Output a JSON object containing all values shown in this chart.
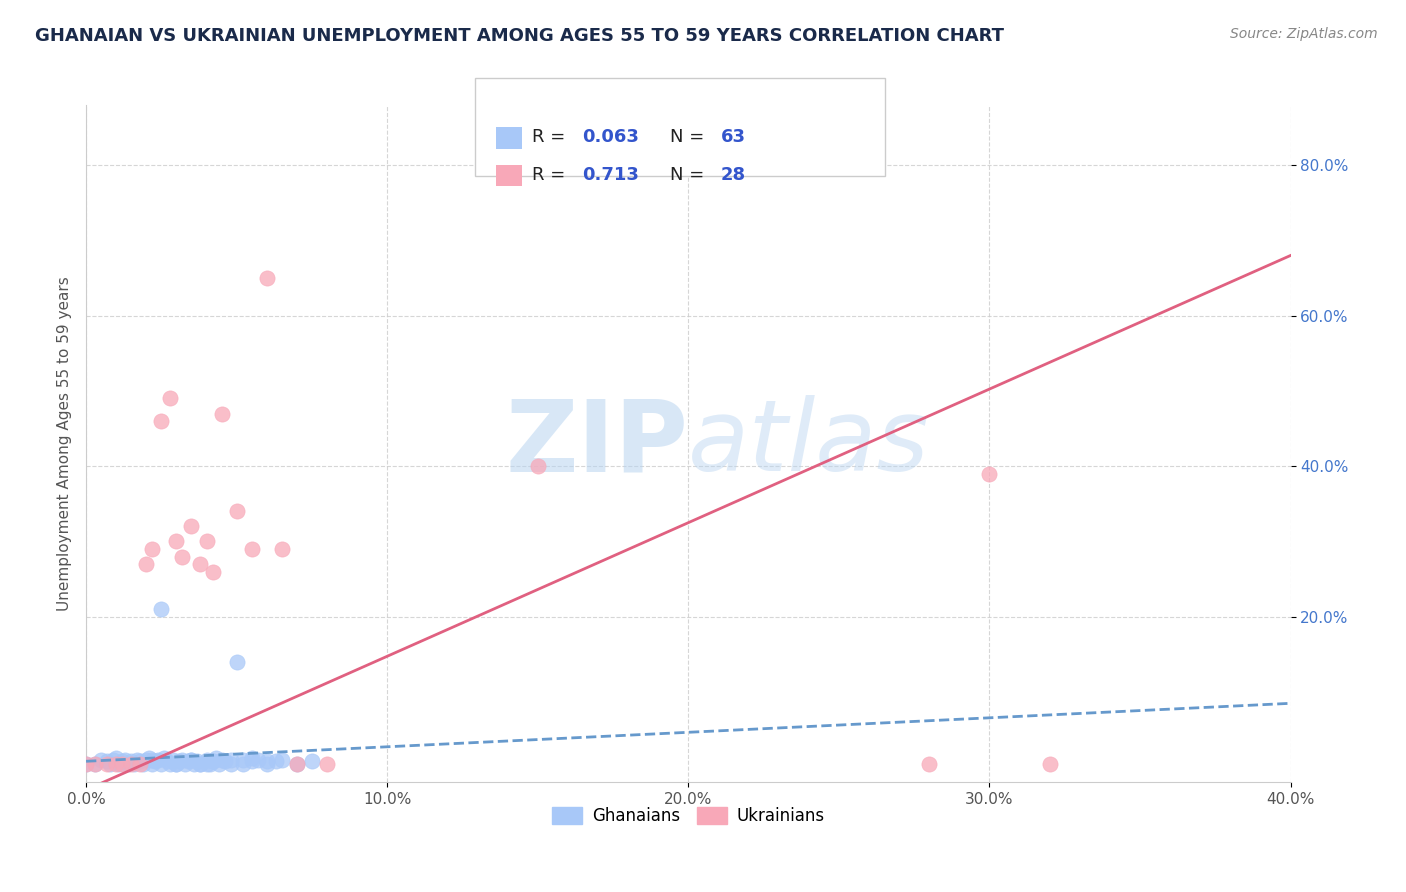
{
  "title": "GHANAIAN VS UKRAINIAN UNEMPLOYMENT AMONG AGES 55 TO 59 YEARS CORRELATION CHART",
  "source_text": "Source: ZipAtlas.com",
  "ylabel": "Unemployment Among Ages 55 to 59 years",
  "xlim": [
    0.0,
    0.4
  ],
  "ylim": [
    -0.02,
    0.88
  ],
  "xtick_labels": [
    "0.0%",
    "10.0%",
    "20.0%",
    "30.0%",
    "40.0%"
  ],
  "xtick_values": [
    0.0,
    0.1,
    0.2,
    0.3,
    0.4
  ],
  "ytick_labels": [
    "20.0%",
    "40.0%",
    "60.0%",
    "80.0%"
  ],
  "ytick_values": [
    0.2,
    0.4,
    0.6,
    0.8
  ],
  "ghanaian_color": "#a8c8f8",
  "ukrainian_color": "#f8a8b8",
  "ghanaian_trendline_color": "#6699cc",
  "ukrainian_trendline_color": "#e06080",
  "ghanaian_R": 0.063,
  "ghanaian_N": 63,
  "ukrainian_R": 0.713,
  "ukrainian_N": 28,
  "watermark": "ZIPatlas",
  "background_color": "#ffffff",
  "grid_color": "#cccccc",
  "ytick_color": "#4477cc",
  "legend_R_N_color": "#3355cc",
  "ghanaian_scatter_x": [
    0.0,
    0.003,
    0.005,
    0.007,
    0.008,
    0.009,
    0.01,
    0.011,
    0.012,
    0.013,
    0.014,
    0.015,
    0.016,
    0.017,
    0.018,
    0.019,
    0.02,
    0.021,
    0.022,
    0.023,
    0.024,
    0.025,
    0.026,
    0.027,
    0.028,
    0.029,
    0.03,
    0.031,
    0.032,
    0.033,
    0.034,
    0.035,
    0.036,
    0.037,
    0.038,
    0.04,
    0.041,
    0.042,
    0.043,
    0.044,
    0.045,
    0.046,
    0.048,
    0.05,
    0.052,
    0.055,
    0.057,
    0.06,
    0.063,
    0.065,
    0.07,
    0.075,
    0.052,
    0.048,
    0.055,
    0.06,
    0.04,
    0.035,
    0.038,
    0.042,
    0.03,
    0.025,
    0.022
  ],
  "ghanaian_scatter_y": [
    0.005,
    0.005,
    0.01,
    0.008,
    0.005,
    0.01,
    0.012,
    0.005,
    0.008,
    0.01,
    0.005,
    0.008,
    0.005,
    0.01,
    0.008,
    0.005,
    0.01,
    0.012,
    0.005,
    0.008,
    0.01,
    0.005,
    0.012,
    0.008,
    0.005,
    0.01,
    0.005,
    0.008,
    0.01,
    0.005,
    0.008,
    0.01,
    0.005,
    0.008,
    0.005,
    0.01,
    0.005,
    0.008,
    0.012,
    0.005,
    0.01,
    0.008,
    0.005,
    0.14,
    0.01,
    0.008,
    0.01,
    0.005,
    0.008,
    0.01,
    0.005,
    0.008,
    0.005,
    0.01,
    0.012,
    0.008,
    0.005,
    0.01,
    0.005,
    0.008,
    0.005,
    0.21,
    0.01
  ],
  "ukrainian_scatter_x": [
    0.0,
    0.003,
    0.007,
    0.01,
    0.012,
    0.015,
    0.018,
    0.02,
    0.022,
    0.025,
    0.028,
    0.03,
    0.032,
    0.035,
    0.038,
    0.04,
    0.042,
    0.045,
    0.05,
    0.055,
    0.06,
    0.065,
    0.07,
    0.08,
    0.15,
    0.28,
    0.3,
    0.32
  ],
  "ukrainian_scatter_y": [
    0.005,
    0.005,
    0.005,
    0.005,
    0.005,
    0.005,
    0.005,
    0.27,
    0.29,
    0.46,
    0.49,
    0.3,
    0.28,
    0.32,
    0.27,
    0.3,
    0.26,
    0.47,
    0.34,
    0.29,
    0.65,
    0.29,
    0.005,
    0.005,
    0.4,
    0.005,
    0.39,
    0.005
  ],
  "gh_trend_x": [
    0.0,
    0.4
  ],
  "gh_trend_y": [
    0.008,
    0.085
  ],
  "uk_trend_x": [
    0.0,
    0.4
  ],
  "uk_trend_y": [
    -0.03,
    0.68
  ]
}
